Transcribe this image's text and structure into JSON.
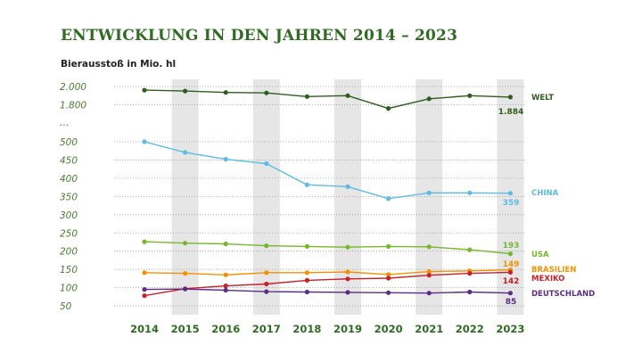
{
  "title": "ENTWICKLUNG IN DEN JAHREN 2014 – 2023",
  "unit_label": "Bierausstoß in Mio. hl",
  "colors": {
    "title": "#2f6b22",
    "year_label": "#2f6b22",
    "tick_label": "#4a7a30",
    "band": "#e6e6e6",
    "grid": "#9a9a9a"
  },
  "chart_data": {
    "type": "line",
    "title": "ENTWICKLUNG IN DEN JAHREN 2014 – 2023",
    "ylabel": "Bierausstoß in Mio. hl",
    "x": [
      "2014",
      "2015",
      "2016",
      "2017",
      "2018",
      "2019",
      "2020",
      "2021",
      "2022",
      "2023"
    ],
    "y_axis_break": true,
    "y_ticks_upper": [
      "2.000",
      "1.800"
    ],
    "y_break_label": "…",
    "y_ticks_lower": [
      "500",
      "450",
      "400",
      "350",
      "300",
      "250",
      "200",
      "150",
      "100",
      "50"
    ],
    "grid": "dotted",
    "shaded_bands_years": [
      "2015",
      "2017",
      "2019",
      "2021",
      "2023"
    ],
    "series": [
      {
        "name": "WELT",
        "color": "#2e5e1e",
        "end_label": "1.884",
        "values": [
          1960,
          1950,
          1935,
          1930,
          1890,
          1900,
          1760,
          1865,
          1900,
          1884
        ]
      },
      {
        "name": "CHINA",
        "color": "#5bbce4",
        "end_label": "359",
        "values": [
          500,
          471,
          452,
          440,
          382,
          377,
          344,
          360,
          360,
          359
        ]
      },
      {
        "name": "USA",
        "color": "#76b82a",
        "end_label": "193",
        "values": [
          226,
          222,
          220,
          215,
          213,
          211,
          213,
          212,
          204,
          193
        ]
      },
      {
        "name": "BRASILIEN",
        "color": "#f39200",
        "end_label": "149",
        "values": [
          141,
          139,
          135,
          141,
          141,
          143,
          136,
          144,
          146,
          149
        ]
      },
      {
        "name": "MEXIKO",
        "color": "#c8202c",
        "end_label": "142",
        "values": [
          78,
          97,
          105,
          110,
          120,
          124,
          126,
          134,
          139,
          142
        ]
      },
      {
        "name": "DEUTSCHLAND",
        "color": "#5b2d83",
        "end_label": "85",
        "values": [
          95,
          96,
          93,
          89,
          88,
          87,
          86,
          85,
          88,
          85
        ]
      }
    ]
  }
}
